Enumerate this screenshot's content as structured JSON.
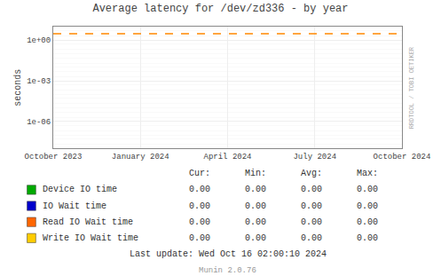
{
  "chart_data": {
    "type": "line",
    "title": "Average latency for /dev/zd336 - by year",
    "y_label": "seconds",
    "categories": [
      "October 2023",
      "January 2024",
      "April 2024",
      "July 2024",
      "October 2024"
    ],
    "log": "y",
    "ylim": [
      1e-08,
      10
    ],
    "yticks": [
      {
        "value": 1e-06,
        "label": "1e-06"
      },
      {
        "value": 0.001,
        "label": "1e-03"
      },
      {
        "value": 1.0,
        "label": "1e+00"
      }
    ],
    "grid": true,
    "reference_lines": [
      {
        "value": 3.0,
        "color": "#ff8800",
        "line_style": "dashed"
      }
    ],
    "series": [
      {
        "name": "Device IO time",
        "color": "#00aa00"
      },
      {
        "name": "IO Wait time",
        "color": "#0000cc"
      },
      {
        "name": "Read IO Wait time",
        "color": "#ff6600"
      },
      {
        "name": "Write IO Wait time",
        "color": "#ffcc00"
      }
    ],
    "table": {
      "headers": [
        "Cur:",
        "Min:",
        "Avg:",
        "Max:"
      ],
      "rows": [
        [
          "0.00",
          "0.00",
          "0.00",
          "0.00"
        ],
        [
          "0.00",
          "0.00",
          "0.00",
          "0.00"
        ],
        [
          "0.00",
          "0.00",
          "0.00",
          "0.00"
        ],
        [
          "0.00",
          "0.00",
          "0.00",
          "0.00"
        ]
      ]
    },
    "last_update": "Last update: Wed Oct 16 02:00:10 2024",
    "watermark": "RRDTOOL / TOBI OETIKER",
    "footer": "Munin 2.0.76"
  }
}
